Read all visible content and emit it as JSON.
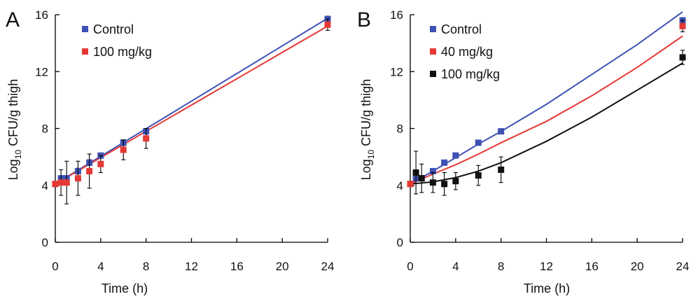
{
  "chart_data": [
    {
      "panel": "A",
      "type": "scatter",
      "xlabel": "Time (h)",
      "ylabel_main": "Log",
      "ylabel_sub": "10",
      "ylabel_rest": " CFU/g thigh",
      "xlim": [
        0,
        24
      ],
      "ylim": [
        0,
        16
      ],
      "x_ticks": [
        0,
        4,
        8,
        12,
        16,
        20,
        24
      ],
      "y_ticks": [
        0,
        4,
        8,
        12,
        16
      ],
      "legend_position": "top-left",
      "series": [
        {
          "name": "Control",
          "color": "#3f51b5",
          "marker": "square",
          "x": [
            0,
            0.5,
            1,
            2,
            3,
            4,
            6,
            8,
            24
          ],
          "y": [
            4.1,
            4.5,
            4.5,
            5.0,
            5.6,
            6.1,
            7.0,
            7.8,
            15.7
          ],
          "err": [
            0.1,
            0.15,
            0.15,
            0.2,
            0.2,
            0.15,
            0.2,
            0.2,
            0.2
          ],
          "fit": [
            [
              0,
              4.1
            ],
            [
              24,
              15.75
            ]
          ]
        },
        {
          "name": "100 mg/kg",
          "color": "#e53935",
          "marker": "square",
          "x": [
            0,
            0.5,
            1,
            2,
            3,
            4,
            6,
            8,
            24
          ],
          "y": [
            4.1,
            4.2,
            4.2,
            4.5,
            5.0,
            5.5,
            6.5,
            7.3,
            15.3
          ],
          "err": [
            0.1,
            0.9,
            1.5,
            1.2,
            1.2,
            0.6,
            0.7,
            0.7,
            0.4
          ],
          "fit": [
            [
              0,
              4.1
            ],
            [
              24,
              15.2
            ]
          ]
        }
      ]
    },
    {
      "panel": "B",
      "type": "scatter",
      "xlabel": "Time (h)",
      "ylabel_main": "Log",
      "ylabel_sub": "10",
      "ylabel_rest": " CFU/g thigh",
      "xlim": [
        0,
        24
      ],
      "ylim": [
        0,
        16
      ],
      "x_ticks": [
        0,
        4,
        8,
        12,
        16,
        20,
        24
      ],
      "y_ticks": [
        0,
        4,
        8,
        12,
        16
      ],
      "legend_position": "top-left",
      "series": [
        {
          "name": "Control",
          "color": "#3f51b5",
          "marker": "square",
          "x": [
            0,
            0.5,
            1,
            2,
            3,
            4,
            6,
            8,
            24
          ],
          "y": [
            4.1,
            4.5,
            4.5,
            5.0,
            5.6,
            6.1,
            7.0,
            7.8,
            15.6
          ],
          "err": [
            0.1,
            0.1,
            0.1,
            0.1,
            0.1,
            0.1,
            0.1,
            0.1,
            0.2
          ],
          "fit": [
            [
              0,
              4.1
            ],
            [
              2,
              5.0
            ],
            [
              4,
              5.95
            ],
            [
              6,
              6.9
            ],
            [
              8,
              7.8
            ],
            [
              12,
              9.7
            ],
            [
              16,
              11.8
            ],
            [
              20,
              13.9
            ],
            [
              24,
              16.2
            ]
          ]
        },
        {
          "name": "40 mg/kg",
          "color": "#e53935",
          "marker": "square",
          "x": [
            0,
            24
          ],
          "y": [
            4.1,
            15.2
          ],
          "err": [
            0.1,
            0.4
          ],
          "fit": [
            [
              0,
              4.1
            ],
            [
              2,
              4.8
            ],
            [
              4,
              5.45
            ],
            [
              6,
              6.2
            ],
            [
              8,
              7.0
            ],
            [
              12,
              8.5
            ],
            [
              16,
              10.3
            ],
            [
              20,
              12.3
            ],
            [
              24,
              14.5
            ]
          ]
        },
        {
          "name": "100 mg/kg",
          "color": "#111111",
          "marker": "square",
          "x": [
            0.5,
            1,
            2,
            3,
            4,
            6,
            8,
            24
          ],
          "y": [
            4.9,
            4.5,
            4.2,
            4.1,
            4.3,
            4.7,
            5.1,
            13.0
          ],
          "err": [
            1.5,
            1.0,
            0.7,
            0.8,
            0.6,
            0.7,
            0.9,
            0.5
          ],
          "fit": [
            [
              0,
              4.1
            ],
            [
              2,
              4.25
            ],
            [
              4,
              4.55
            ],
            [
              6,
              5.0
            ],
            [
              8,
              5.6
            ],
            [
              12,
              7.1
            ],
            [
              16,
              8.8
            ],
            [
              20,
              10.7
            ],
            [
              24,
              12.6
            ]
          ]
        }
      ]
    }
  ]
}
